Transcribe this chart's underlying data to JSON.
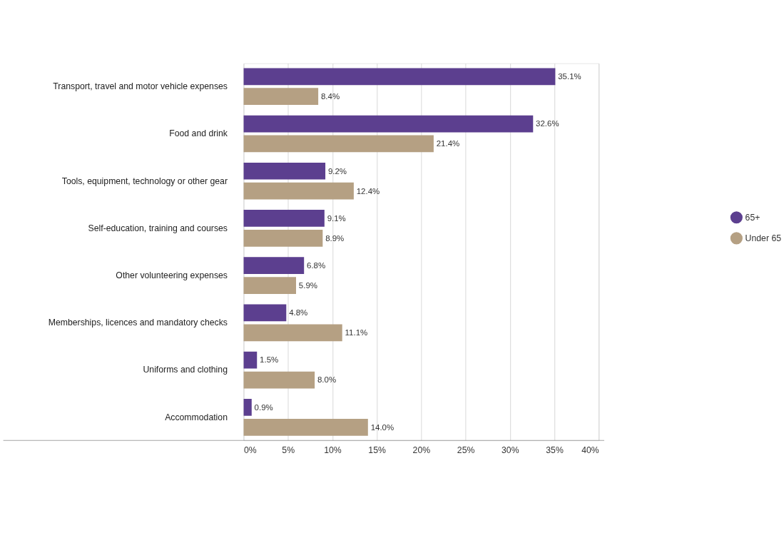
{
  "chart_data": {
    "type": "bar",
    "orientation": "horizontal",
    "categories": [
      "Transport, travel and motor vehicle expenses",
      "Food and drink",
      "Tools, equipment, technology or other gear",
      "Self-education, training and courses",
      "Other volunteering expenses",
      "Memberships, licences and mandatory checks",
      "Uniforms and clothing",
      "Accommodation"
    ],
    "series": [
      {
        "name": "65+",
        "color": "#5c3f8f",
        "values": [
          35.1,
          32.6,
          9.2,
          9.1,
          6.8,
          4.8,
          1.5,
          0.9
        ],
        "value_labels": [
          "35.1%",
          "32.6%",
          "9.2%",
          "9.1%",
          "6.8%",
          "4.8%",
          "1.5%",
          "0.9%"
        ]
      },
      {
        "name": "Under 65",
        "color": "#b5a083",
        "values": [
          8.4,
          21.4,
          12.4,
          8.9,
          5.9,
          11.1,
          8.0,
          14.0
        ],
        "value_labels": [
          "8.4%",
          "21.4%",
          "12.4%",
          "8.9%",
          "5.9%",
          "11.1%",
          "8.0%",
          "14.0%"
        ]
      }
    ],
    "xlim": [
      0,
      40
    ],
    "xticks": [
      {
        "value": 0,
        "label": "0%"
      },
      {
        "value": 5,
        "label": "5%"
      },
      {
        "value": 10,
        "label": "10%"
      },
      {
        "value": 15,
        "label": "15%"
      },
      {
        "value": 20,
        "label": "20%"
      },
      {
        "value": 25,
        "label": "25%"
      },
      {
        "value": 30,
        "label": "30%"
      },
      {
        "value": 35,
        "label": "35%"
      },
      {
        "value": 40,
        "label": "40%"
      }
    ],
    "grid": "x",
    "legend": "right"
  }
}
